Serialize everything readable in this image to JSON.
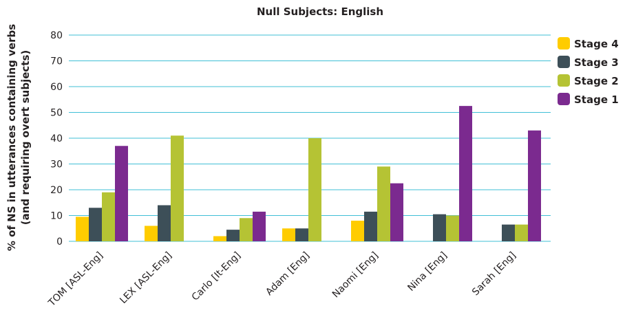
{
  "chart_data": {
    "type": "bar",
    "title": "Null Subjects: English",
    "xlabel": "",
    "ylabel_lines": [
      "% of NS in utterances containing verbs",
      "(and requiring overt subjects)"
    ],
    "ylim": [
      0,
      80
    ],
    "yticks": [
      0,
      10,
      20,
      30,
      40,
      50,
      60,
      70,
      80
    ],
    "grid": true,
    "legend_position": "right",
    "categories": [
      "TOM [ASL-Eng]",
      "LEX [ASL-Eng]",
      "Carlo [It-Eng]",
      "Adam [Eng]",
      "Naomi [Eng]",
      "Nina [Eng]",
      "Sarah [Eng]"
    ],
    "series": [
      {
        "name": "Stage 4",
        "color": "#ffcc00",
        "values": [
          9.5,
          6,
          2,
          5,
          8,
          null,
          null
        ]
      },
      {
        "name": "Stage 3",
        "color": "#3d4f58",
        "values": [
          13,
          14,
          4.5,
          5,
          11.5,
          10.5,
          6.5
        ]
      },
      {
        "name": "Stage 2",
        "color": "#b5c334",
        "values": [
          19,
          41,
          9,
          40,
          29,
          10,
          6.5
        ]
      },
      {
        "name": "Stage 1",
        "color": "#7b2a8f",
        "values": [
          37,
          null,
          11.5,
          null,
          22.5,
          52.5,
          43
        ]
      }
    ],
    "legend_order": [
      "Stage 4",
      "Stage 3",
      "Stage 2",
      "Stage 1"
    ]
  }
}
